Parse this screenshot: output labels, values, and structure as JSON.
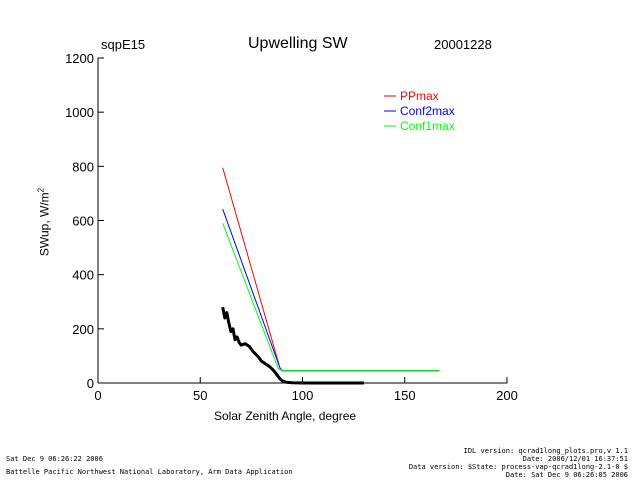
{
  "header": {
    "site": "sqpE15",
    "title": "Upwelling SW",
    "date": "20001228"
  },
  "footer": {
    "left_line1": "Sat Dec  9 06:26:22 2006",
    "left_line2": "Battelle Pacific Northwest National Laboratory, Arm Data Application",
    "right_line1": "IDL version: qcrad1long_plots.pro,v 1.1",
    "right_line2": "Date: 2006/12/01 16:37:51",
    "right_line3": "Data version: $State: process-vap-qcrad1long-2.1-0 $",
    "right_line4": "Date: Sat Dec  9 06:26:05 2006"
  },
  "chart_data": {
    "type": "line",
    "title": "Upwelling SW",
    "xlabel": "Solar Zenith Angle, degree",
    "ylabel": "SWup, W/m²",
    "ylabel_main": "SWup, W/m",
    "ylabel_sup": "2",
    "xlim": [
      0,
      200
    ],
    "ylim": [
      0,
      1200
    ],
    "x_ticks": [
      0,
      50,
      100,
      150,
      200
    ],
    "x_tick_labels": [
      "0",
      "50",
      "100",
      "150",
      "200"
    ],
    "y_ticks": [
      0,
      200,
      400,
      600,
      800,
      1000,
      1200
    ],
    "y_tick_labels": [
      "0",
      "200",
      "400",
      "600",
      "800",
      "1000",
      "1200"
    ],
    "grid": false,
    "legend_position": "top-right",
    "series": [
      {
        "name": "PPmax",
        "color": "#ff0000",
        "x": [
          61,
          89,
          90,
          167
        ],
        "y": [
          795,
          55,
          45,
          45
        ]
      },
      {
        "name": "Conf2max",
        "color": "#0000ff",
        "x": [
          61,
          89,
          90,
          167
        ],
        "y": [
          642,
          55,
          45,
          45
        ]
      },
      {
        "name": "Conf1max",
        "color": "#00ff00",
        "x": [
          61,
          88,
          90,
          167
        ],
        "y": [
          590,
          55,
          45,
          45
        ]
      },
      {
        "name": "",
        "color": "#000000",
        "x": [
          61,
          62,
          63,
          64,
          65,
          66,
          67,
          68,
          69,
          70,
          72,
          74,
          76,
          78,
          80,
          82,
          84,
          86,
          88,
          89,
          90,
          92,
          95,
          100,
          110,
          120,
          130
        ],
        "y": [
          280,
          240,
          260,
          220,
          190,
          200,
          160,
          170,
          150,
          140,
          145,
          135,
          115,
          100,
          80,
          70,
          60,
          45,
          25,
          15,
          8,
          3,
          1,
          0,
          0,
          0,
          0
        ]
      }
    ]
  }
}
